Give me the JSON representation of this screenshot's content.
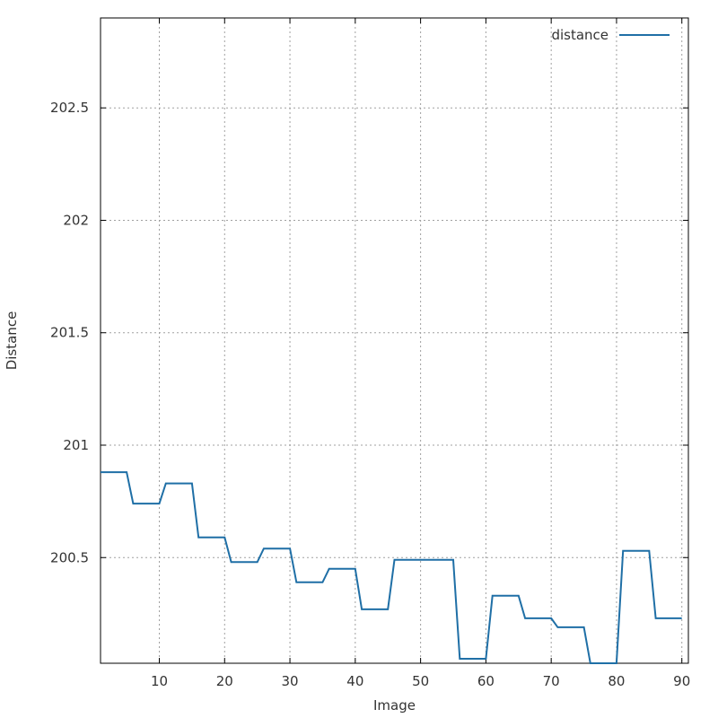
{
  "chart_data": {
    "type": "line",
    "xlabel": "Image",
    "ylabel": "Distance",
    "xlim": [
      1,
      91
    ],
    "ylim": [
      200.03,
      202.9
    ],
    "x_ticks": [
      10,
      20,
      30,
      40,
      50,
      60,
      70,
      80,
      90
    ],
    "y_ticks": [
      200.5,
      201,
      201.5,
      202,
      202.5
    ],
    "x_tick_labels": [
      "10",
      "20",
      "30",
      "40",
      "50",
      "60",
      "70",
      "80",
      "90"
    ],
    "y_tick_labels": [
      "200.5",
      "201",
      "201.5",
      "202",
      "202.5"
    ],
    "grid": true,
    "legend_position": "top-right",
    "series": [
      {
        "name": "distance",
        "color": "#1f6fa6",
        "points": [
          [
            1,
            200.88
          ],
          [
            5,
            200.88
          ],
          [
            6,
            200.74
          ],
          [
            10,
            200.74
          ],
          [
            11,
            200.83
          ],
          [
            15,
            200.83
          ],
          [
            16,
            200.59
          ],
          [
            20,
            200.59
          ],
          [
            21,
            200.48
          ],
          [
            25,
            200.48
          ],
          [
            26,
            200.54
          ],
          [
            30,
            200.54
          ],
          [
            31,
            200.39
          ],
          [
            35,
            200.39
          ],
          [
            36,
            200.45
          ],
          [
            40,
            200.45
          ],
          [
            41,
            200.27
          ],
          [
            45,
            200.27
          ],
          [
            46,
            200.49
          ],
          [
            55,
            200.49
          ],
          [
            56,
            200.05
          ],
          [
            60,
            200.05
          ],
          [
            61,
            200.33
          ],
          [
            65,
            200.33
          ],
          [
            66,
            200.23
          ],
          [
            70,
            200.23
          ],
          [
            71,
            200.19
          ],
          [
            75,
            200.19
          ],
          [
            76,
            200.03
          ],
          [
            80,
            200.03
          ],
          [
            81,
            200.53
          ],
          [
            85,
            200.53
          ],
          [
            86,
            200.23
          ],
          [
            90,
            200.23
          ]
        ]
      }
    ]
  }
}
